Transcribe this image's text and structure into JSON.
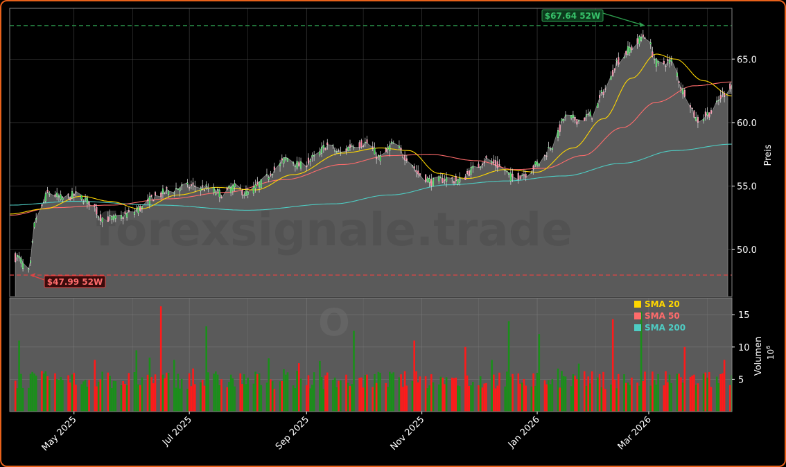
{
  "colors": {
    "frame": "#e8611a",
    "up": "#1a8f1a",
    "down": "#ff1a1a",
    "sma20": "#ffd700",
    "sma50": "#ff6b6b",
    "sma200": "#4ecdc4",
    "high_line": "#2e9e4f",
    "low_line": "#e04444",
    "area": "#5a5a5a",
    "panel_bg": "#000000",
    "grid": "#444444",
    "text": "#ffffff"
  },
  "chart_data": {
    "type": "candlestick",
    "x_range": [
      "2025-03-28",
      "2026-04-14"
    ],
    "x_ticks": [
      {
        "date": "2025-05-01",
        "label": "May 2025"
      },
      {
        "date": "2025-07-01",
        "label": "Jul 2025"
      },
      {
        "date": "2025-09-01",
        "label": "Sep 2025"
      },
      {
        "date": "2025-11-01",
        "label": "Nov 2025"
      },
      {
        "date": "2026-01-01",
        "label": "Jan 2026"
      },
      {
        "date": "2026-03-01",
        "label": "Mar 2026"
      }
    ],
    "price_panel": {
      "ylabel": "Preis",
      "ylim": [
        46.3,
        69.0
      ],
      "yticks": [
        {
          "value": 50.0,
          "label": "50.0"
        },
        {
          "value": 55.0,
          "label": "55.0"
        },
        {
          "value": 60.0,
          "label": "60.0"
        },
        {
          "value": 65.0,
          "label": "65.0"
        }
      ],
      "high_52w": {
        "value": 67.64,
        "label": "$67.64 52W",
        "date": "2026-02-27"
      },
      "low_52w": {
        "value": 47.99,
        "label": "$47.99 52W",
        "date": "2025-04-07"
      },
      "close_anchors": [
        [
          "2025-04-01",
          49.4
        ],
        [
          "2025-04-07",
          48.2
        ],
        [
          "2025-04-11",
          52.5
        ],
        [
          "2025-04-18",
          54.5
        ],
        [
          "2025-04-25",
          54.0
        ],
        [
          "2025-05-02",
          54.3
        ],
        [
          "2025-05-09",
          53.8
        ],
        [
          "2025-05-16",
          52.5
        ],
        [
          "2025-05-23",
          52.4
        ],
        [
          "2025-05-30",
          52.8
        ],
        [
          "2025-06-06",
          53.3
        ],
        [
          "2025-06-13",
          54.2
        ],
        [
          "2025-06-20",
          54.6
        ],
        [
          "2025-06-27",
          54.9
        ],
        [
          "2025-07-04",
          55.0
        ],
        [
          "2025-07-11",
          54.8
        ],
        [
          "2025-07-18",
          54.4
        ],
        [
          "2025-07-25",
          54.9
        ],
        [
          "2025-08-01",
          54.4
        ],
        [
          "2025-08-08",
          55.2
        ],
        [
          "2025-08-15",
          56.3
        ],
        [
          "2025-08-22",
          57.2
        ],
        [
          "2025-08-29",
          56.6
        ],
        [
          "2025-09-05",
          57.2
        ],
        [
          "2025-09-12",
          58.2
        ],
        [
          "2025-09-19",
          57.6
        ],
        [
          "2025-09-26",
          58.3
        ],
        [
          "2025-10-03",
          58.4
        ],
        [
          "2025-10-10",
          57.2
        ],
        [
          "2025-10-17",
          58.3
        ],
        [
          "2025-10-24",
          57.3
        ],
        [
          "2025-10-31",
          55.9
        ],
        [
          "2025-11-07",
          55.3
        ],
        [
          "2025-11-14",
          55.6
        ],
        [
          "2025-11-21",
          55.4
        ],
        [
          "2025-11-28",
          56.3
        ],
        [
          "2025-12-05",
          57.1
        ],
        [
          "2025-12-12",
          56.6
        ],
        [
          "2025-12-19",
          55.7
        ],
        [
          "2025-12-26",
          56.0
        ],
        [
          "2026-01-02",
          56.8
        ],
        [
          "2026-01-09",
          58.2
        ],
        [
          "2026-01-16",
          60.4
        ],
        [
          "2026-01-23",
          60.2
        ],
        [
          "2026-01-30",
          60.6
        ],
        [
          "2026-02-06",
          62.6
        ],
        [
          "2026-02-13",
          64.9
        ],
        [
          "2026-02-20",
          65.9
        ],
        [
          "2026-02-27",
          66.9
        ],
        [
          "2026-03-06",
          64.6
        ],
        [
          "2026-03-13",
          64.8
        ],
        [
          "2026-03-20",
          62.4
        ],
        [
          "2026-03-27",
          60.2
        ],
        [
          "2026-04-03",
          60.8
        ],
        [
          "2026-04-10",
          62.3
        ],
        [
          "2026-04-14",
          63.0
        ]
      ],
      "sma20_anchors": [
        [
          "2025-03-28",
          52.8
        ],
        [
          "2025-04-15",
          53.2
        ],
        [
          "2025-05-05",
          54.2
        ],
        [
          "2025-05-20",
          53.8
        ],
        [
          "2025-06-05",
          53.2
        ],
        [
          "2025-06-25",
          54.3
        ],
        [
          "2025-07-15",
          54.9
        ],
        [
          "2025-08-05",
          54.7
        ],
        [
          "2025-08-25",
          55.9
        ],
        [
          "2025-09-20",
          57.6
        ],
        [
          "2025-10-10",
          58.0
        ],
        [
          "2025-10-25",
          57.8
        ],
        [
          "2025-11-10",
          56.0
        ],
        [
          "2025-11-25",
          55.6
        ],
        [
          "2025-12-15",
          56.3
        ],
        [
          "2026-01-01",
          56.1
        ],
        [
          "2026-01-20",
          58.0
        ],
        [
          "2026-02-05",
          60.3
        ],
        [
          "2026-02-20",
          63.5
        ],
        [
          "2026-03-05",
          65.4
        ],
        [
          "2026-03-15",
          65.0
        ],
        [
          "2026-03-30",
          63.3
        ],
        [
          "2026-04-14",
          62.1
        ]
      ],
      "sma50_anchors": [
        [
          "2025-03-28",
          52.7
        ],
        [
          "2025-04-20",
          53.3
        ],
        [
          "2025-05-20",
          53.5
        ],
        [
          "2025-06-20",
          54.0
        ],
        [
          "2025-07-20",
          54.5
        ],
        [
          "2025-08-20",
          55.5
        ],
        [
          "2025-09-20",
          56.7
        ],
        [
          "2025-10-15",
          57.4
        ],
        [
          "2025-11-05",
          57.5
        ],
        [
          "2025-11-30",
          57.0
        ],
        [
          "2025-12-20",
          56.3
        ],
        [
          "2026-01-05",
          56.4
        ],
        [
          "2026-01-25",
          57.4
        ],
        [
          "2026-02-15",
          59.6
        ],
        [
          "2026-03-05",
          61.6
        ],
        [
          "2026-03-25",
          62.9
        ],
        [
          "2026-04-14",
          63.2
        ]
      ],
      "sma200_anchors": [
        [
          "2025-03-28",
          53.5
        ],
        [
          "2025-05-01",
          53.8
        ],
        [
          "2025-06-15",
          53.5
        ],
        [
          "2025-08-01",
          53.1
        ],
        [
          "2025-09-15",
          53.6
        ],
        [
          "2025-10-15",
          54.3
        ],
        [
          "2025-11-15",
          55.1
        ],
        [
          "2025-12-15",
          55.4
        ],
        [
          "2026-01-15",
          55.8
        ],
        [
          "2026-02-15",
          56.8
        ],
        [
          "2026-03-15",
          57.8
        ],
        [
          "2026-04-14",
          58.3
        ]
      ]
    },
    "volume_panel": {
      "ylabel": "Volumen",
      "unit_label": "10",
      "unit_exponent": "6",
      "ylim": [
        0,
        17.6
      ],
      "yticks": [
        {
          "value": 5,
          "label": "5"
        },
        {
          "value": 10,
          "label": "10"
        },
        {
          "value": 15,
          "label": "15"
        }
      ],
      "spikes": [
        [
          "2025-04-02",
          11.0
        ],
        [
          "2025-05-12",
          8.0
        ],
        [
          "2025-06-03",
          9.5
        ],
        [
          "2025-06-16",
          16.3
        ],
        [
          "2025-06-23",
          8.0
        ],
        [
          "2025-07-10",
          13.2
        ],
        [
          "2025-08-28",
          7.5
        ],
        [
          "2025-09-26",
          12.5
        ],
        [
          "2025-10-28",
          11.0
        ],
        [
          "2025-11-24",
          10.0
        ],
        [
          "2025-12-08",
          8.0
        ],
        [
          "2025-12-17",
          14.0
        ],
        [
          "2026-01-02",
          12.0
        ],
        [
          "2026-02-10",
          13.0
        ],
        [
          "2026-02-25",
          15.5
        ],
        [
          "2026-03-20",
          10.0
        ],
        [
          "2026-04-10",
          8.0
        ]
      ]
    },
    "legend": {
      "placement": "top-right of volume panel",
      "entries": [
        {
          "name": "SMA 20",
          "color": "#ffd700"
        },
        {
          "name": "SMA 50",
          "color": "#ff6b6b"
        },
        {
          "name": "SMA 200",
          "color": "#4ecdc4"
        }
      ]
    }
  },
  "watermark": "forexsignale.trade",
  "watermark_small": "O"
}
